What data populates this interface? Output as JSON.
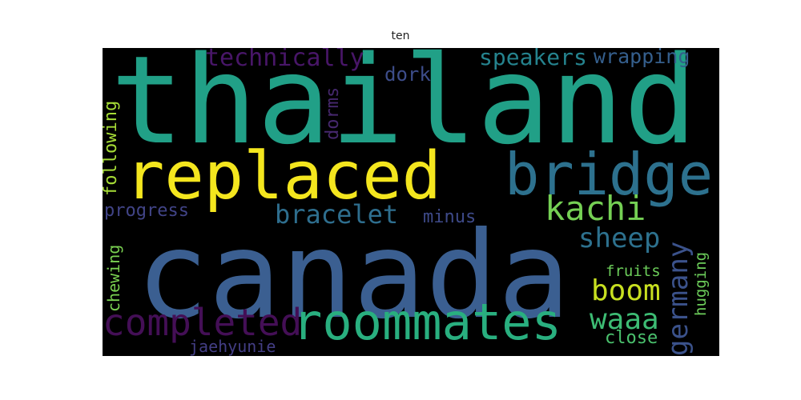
{
  "title": "ten",
  "words": [
    {
      "text": "thailand",
      "color": "#21a087",
      "orientation": "horizontal"
    },
    {
      "text": "canada",
      "color": "#3b5f91",
      "orientation": "horizontal"
    },
    {
      "text": "replaced",
      "color": "#f4e61e",
      "orientation": "horizontal"
    },
    {
      "text": "bridge",
      "color": "#2d718e",
      "orientation": "horizontal"
    },
    {
      "text": "roommates",
      "color": "#29af7f",
      "orientation": "horizontal"
    },
    {
      "text": "completed",
      "color": "#440f56",
      "orientation": "horizontal"
    },
    {
      "text": "kachi",
      "color": "#75d054",
      "orientation": "horizontal"
    },
    {
      "text": "bracelet",
      "color": "#2e6e8e",
      "orientation": "horizontal"
    },
    {
      "text": "technically",
      "color": "#481668",
      "orientation": "horizontal"
    },
    {
      "text": "speakers",
      "color": "#25838e",
      "orientation": "horizontal"
    },
    {
      "text": "wrapping",
      "color": "#355f8d",
      "orientation": "horizontal"
    },
    {
      "text": "sheep",
      "color": "#2d718e",
      "orientation": "horizontal"
    },
    {
      "text": "germany",
      "color": "#3b528b",
      "orientation": "vertical"
    },
    {
      "text": "boom",
      "color": "#c8e020",
      "orientation": "horizontal"
    },
    {
      "text": "waaa",
      "color": "#3dbc74",
      "orientation": "horizontal"
    },
    {
      "text": "dork",
      "color": "#3d4d8a",
      "orientation": "horizontal"
    },
    {
      "text": "dorms",
      "color": "#46286e",
      "orientation": "vertical"
    },
    {
      "text": "following",
      "color": "#a5db36",
      "orientation": "vertical"
    },
    {
      "text": "progress",
      "color": "#414487",
      "orientation": "horizontal"
    },
    {
      "text": "minus",
      "color": "#3e4a89",
      "orientation": "horizontal"
    },
    {
      "text": "chewing",
      "color": "#7ad151",
      "orientation": "vertical"
    },
    {
      "text": "fruits",
      "color": "#6ccd5a",
      "orientation": "horizontal"
    },
    {
      "text": "hugging",
      "color": "#6ccd5a",
      "orientation": "vertical"
    },
    {
      "text": "close",
      "color": "#4ac16d",
      "orientation": "horizontal"
    },
    {
      "text": "jaehyunie",
      "color": "#433e85",
      "orientation": "horizontal"
    }
  ]
}
